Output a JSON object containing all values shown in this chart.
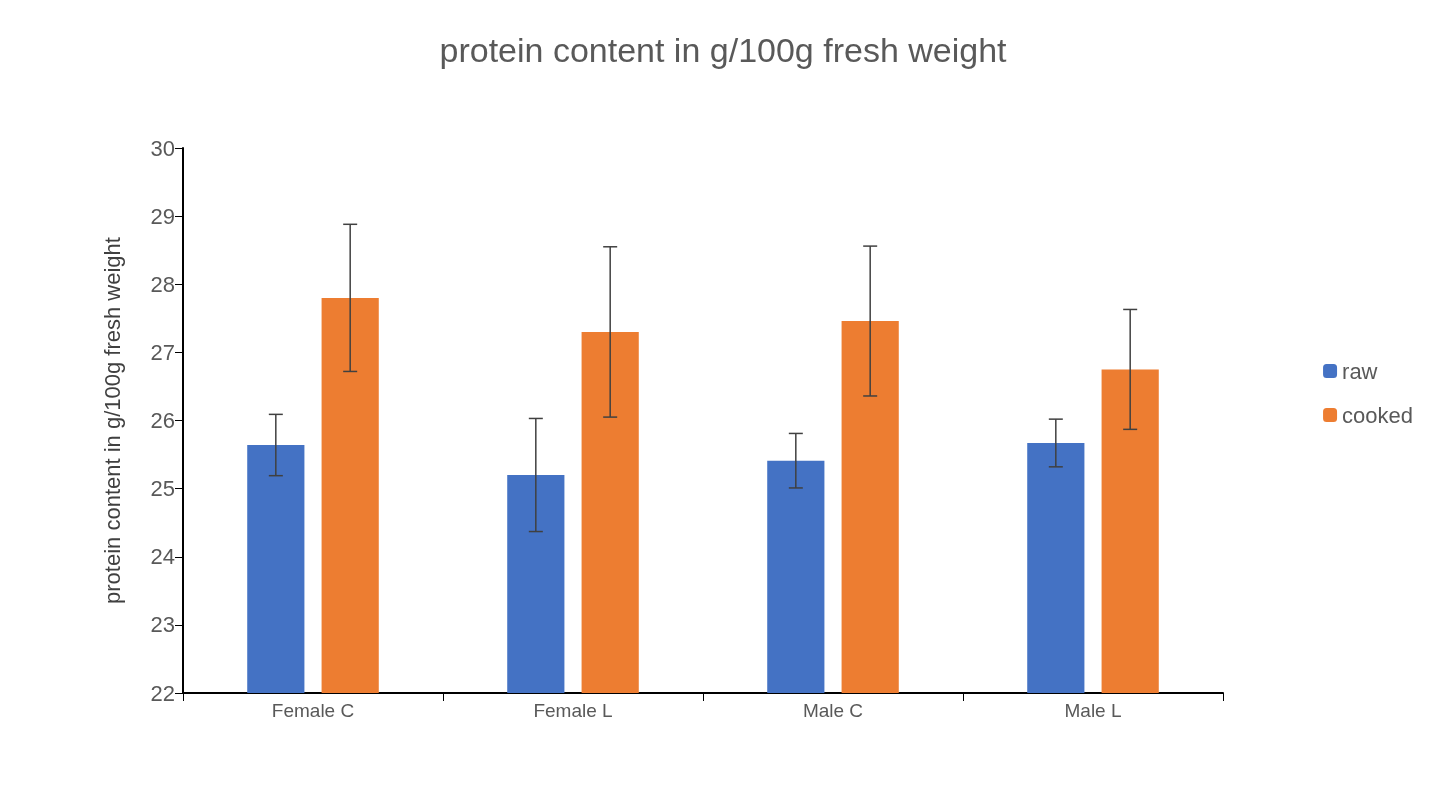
{
  "chart_data": {
    "type": "bar",
    "title": "protein content in g/100g fresh weight",
    "ylabel": "protein content in g/100g fresh weight",
    "categories": [
      "Female C",
      "Female L",
      "Male C",
      "Male L"
    ],
    "series": [
      {
        "name": "raw",
        "color": "#4472c4",
        "values": [
          25.64,
          25.2,
          25.41,
          25.67
        ],
        "errors": [
          0.45,
          0.83,
          0.4,
          0.35
        ]
      },
      {
        "name": "cooked",
        "color": "#ed7d31",
        "values": [
          27.8,
          27.3,
          27.46,
          26.75
        ],
        "errors": [
          1.08,
          1.25,
          1.1,
          0.88
        ]
      }
    ],
    "ylim": [
      22,
      30
    ],
    "yticks": [
      22,
      23,
      24,
      25,
      26,
      27,
      28,
      29,
      30
    ],
    "grid": false,
    "legend": "right"
  }
}
